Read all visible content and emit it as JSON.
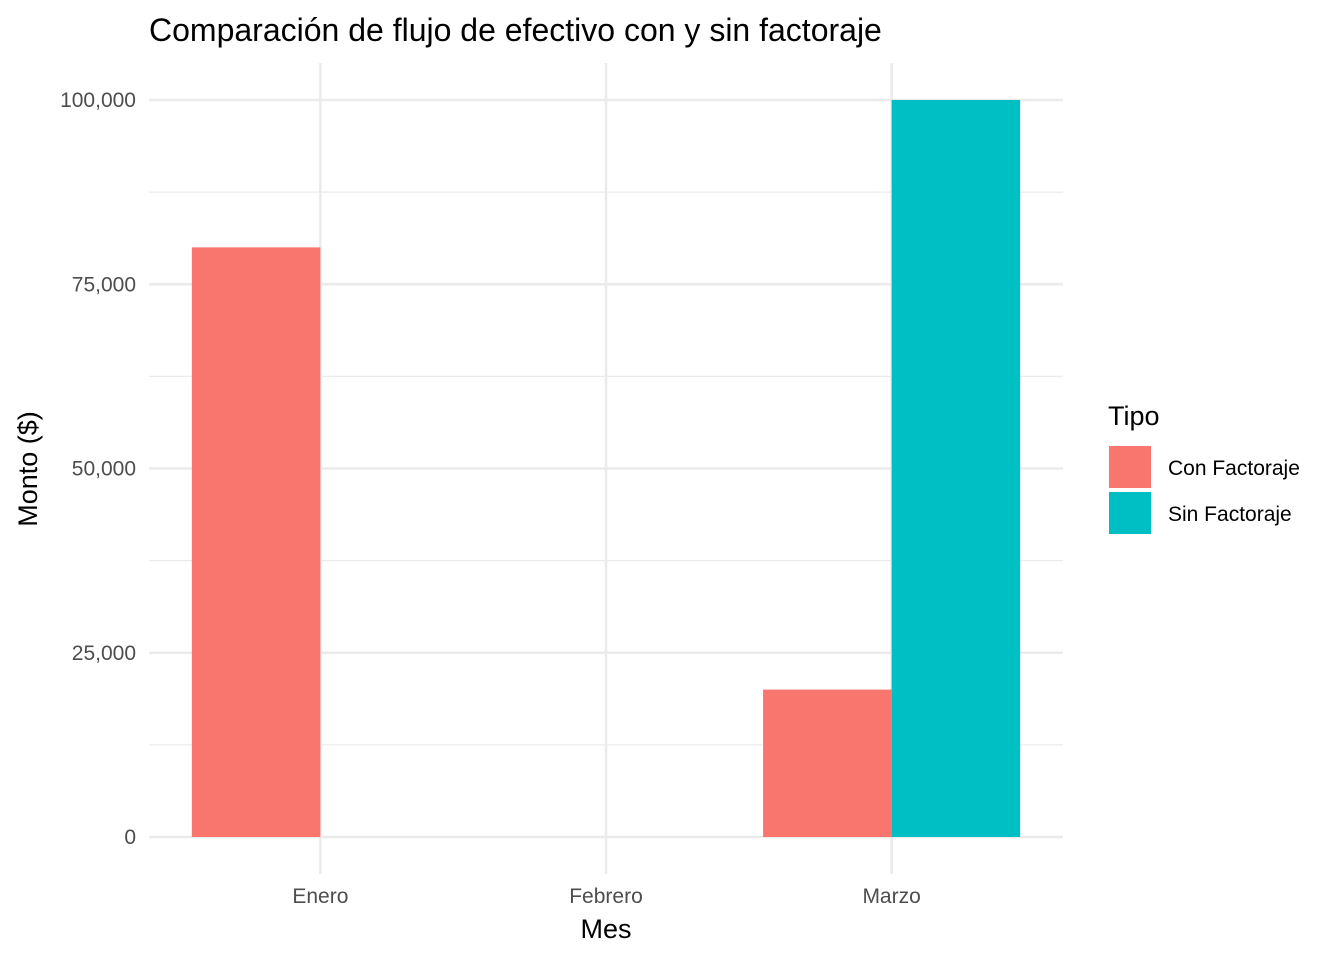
{
  "chart_data": {
    "type": "bar",
    "title": "Comparación de flujo de efectivo con y sin factoraje",
    "xlabel": "Mes",
    "ylabel": "Monto ($)",
    "categories": [
      "Enero",
      "Febrero",
      "Marzo"
    ],
    "series": [
      {
        "name": "Con Factoraje",
        "color": "#F8766D",
        "values": [
          80000,
          null,
          20000
        ]
      },
      {
        "name": "Sin Factoraje",
        "color": "#00BFC4",
        "values": [
          null,
          null,
          100000
        ]
      }
    ],
    "ylim": [
      0,
      100000
    ],
    "yticks": [
      0,
      25000,
      50000,
      75000,
      100000
    ],
    "ytick_labels": [
      "0",
      "25,000",
      "50,000",
      "75,000",
      "100,000"
    ],
    "grid": true,
    "legend": {
      "title": "Tipo",
      "position": "right"
    }
  }
}
